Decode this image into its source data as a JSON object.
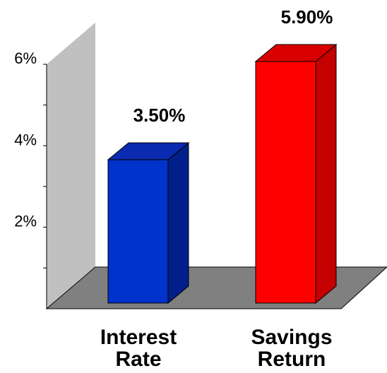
{
  "chart_data": {
    "type": "bar",
    "title": "",
    "xlabel": "",
    "ylabel": "",
    "ylim": [
      0,
      6
    ],
    "y_ticks": [
      {
        "value": 2,
        "label": "2%"
      },
      {
        "value": 4,
        "label": "4%"
      },
      {
        "value": 6,
        "label": "6%"
      }
    ],
    "grid": false,
    "legend": "none",
    "categories": [
      {
        "lines": [
          "Interest",
          "Rate"
        ]
      },
      {
        "lines": [
          "Savings",
          "Return"
        ]
      }
    ],
    "values": [
      3.5,
      5.9
    ],
    "data_labels": [
      "3.50%",
      "5.90%"
    ],
    "colors": [
      {
        "front": "#0033cc",
        "side": "#001f8a",
        "top": "#0a2ab0"
      },
      {
        "front": "#ff0000",
        "side": "#c40000",
        "top": "#d80000"
      }
    ],
    "wall_color": "#c0c0c0",
    "floor_color": "#808080"
  }
}
